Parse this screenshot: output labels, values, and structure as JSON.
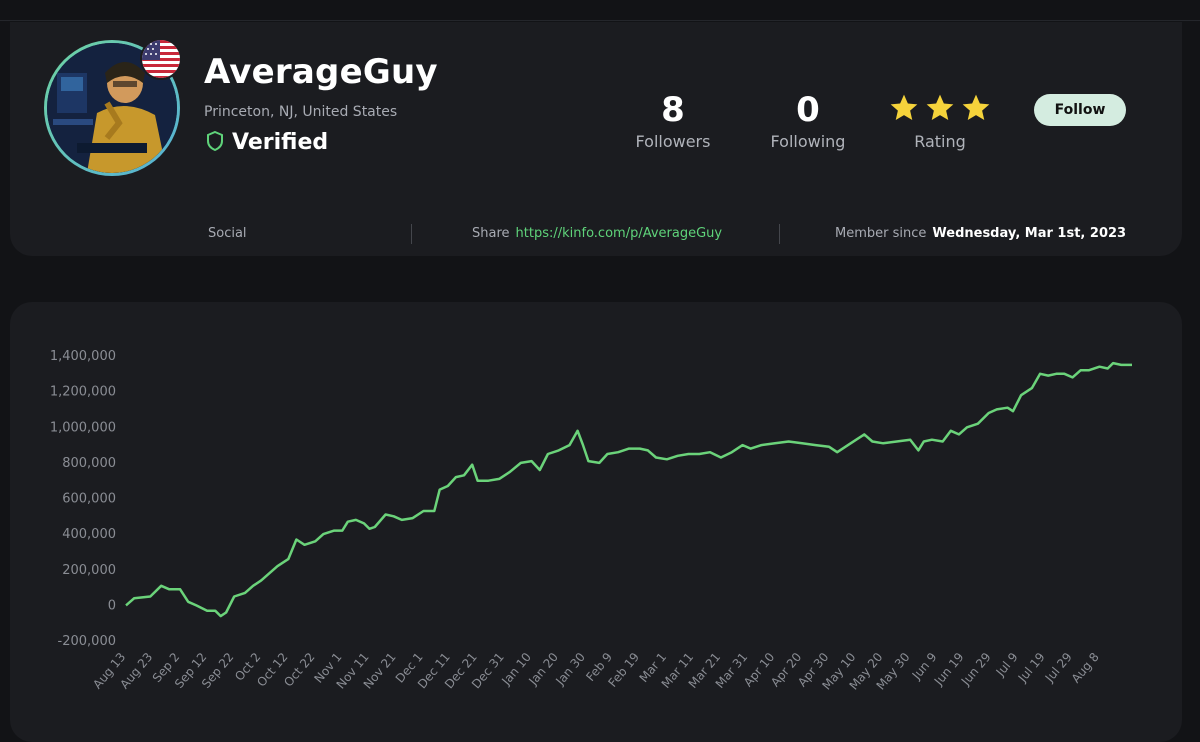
{
  "profile": {
    "name": "AverageGuy",
    "location": "Princeton, NJ, United States",
    "verified_label": "Verified",
    "avatar_icon": "avatar-illustration",
    "flag_icon": "us-flag-icon"
  },
  "stats": {
    "followers_value": "8",
    "followers_label": "Followers",
    "following_value": "0",
    "following_label": "Following",
    "rating_label": "Rating",
    "rating_stars": 3
  },
  "follow_button": "Follow",
  "info": {
    "social_label": "Social",
    "share_label": "Share",
    "share_link": "https://kinfo.com/p/AverageGuy",
    "since_label": "Member since",
    "since_value": "Wednesday, Mar 1st, 2023"
  },
  "colors": {
    "accent": "#5fd37a",
    "star": "#f5d33b",
    "button_bg": "#d4ece0",
    "line": "#6bd37a"
  },
  "chart_data": {
    "type": "line",
    "title": "",
    "xlabel": "",
    "ylabel": "",
    "ylim": [
      -200000,
      1400000
    ],
    "yticks": [
      -200000,
      0,
      200000,
      400000,
      600000,
      800000,
      1000000,
      1200000,
      1400000
    ],
    "ytick_labels": [
      "-200,000",
      "0",
      "200,000",
      "400,000",
      "600,000",
      "800,000",
      "1,000,000",
      "1,200,000",
      "1,400,000"
    ],
    "xtick_labels": [
      "Aug 13",
      "Aug 23",
      "Sep 2",
      "Sep 12",
      "Sep 22",
      "Oct 2",
      "Oct 12",
      "Oct 22",
      "Nov 1",
      "Nov 11",
      "Nov 21",
      "Dec 1",
      "Dec 11",
      "Dec 21",
      "Dec 31",
      "Jan 10",
      "Jan 20",
      "Jan 30",
      "Feb 9",
      "Feb 19",
      "Mar 1",
      "Mar 11",
      "Mar 21",
      "Mar 31",
      "Apr 10",
      "Apr 20",
      "Apr 30",
      "May 10",
      "May 20",
      "May 30",
      "Jun 9",
      "Jun 19",
      "Jun 29",
      "Jul 9",
      "Jul 19",
      "Jul 29",
      "Aug 8"
    ],
    "x_index_max": 37.2,
    "series": [
      {
        "points": [
          [
            0,
            0
          ],
          [
            0.3,
            40000
          ],
          [
            0.9,
            50000
          ],
          [
            1.3,
            110000
          ],
          [
            1.6,
            90000
          ],
          [
            2.0,
            90000
          ],
          [
            2.3,
            20000
          ],
          [
            2.6,
            0
          ],
          [
            3.0,
            -30000
          ],
          [
            3.3,
            -30000
          ],
          [
            3.5,
            -60000
          ],
          [
            3.7,
            -40000
          ],
          [
            4.0,
            50000
          ],
          [
            4.4,
            70000
          ],
          [
            4.7,
            110000
          ],
          [
            5.0,
            140000
          ],
          [
            5.3,
            180000
          ],
          [
            5.6,
            220000
          ],
          [
            6.0,
            260000
          ],
          [
            6.3,
            370000
          ],
          [
            6.6,
            340000
          ],
          [
            7.0,
            360000
          ],
          [
            7.3,
            400000
          ],
          [
            7.7,
            420000
          ],
          [
            8.0,
            420000
          ],
          [
            8.2,
            470000
          ],
          [
            8.5,
            480000
          ],
          [
            8.8,
            460000
          ],
          [
            9.0,
            430000
          ],
          [
            9.2,
            440000
          ],
          [
            9.6,
            510000
          ],
          [
            9.9,
            500000
          ],
          [
            10.2,
            480000
          ],
          [
            10.6,
            490000
          ],
          [
            11.0,
            530000
          ],
          [
            11.4,
            530000
          ],
          [
            11.6,
            650000
          ],
          [
            11.9,
            670000
          ],
          [
            12.2,
            720000
          ],
          [
            12.5,
            730000
          ],
          [
            12.8,
            790000
          ],
          [
            13.0,
            700000
          ],
          [
            13.4,
            700000
          ],
          [
            13.8,
            710000
          ],
          [
            14.2,
            750000
          ],
          [
            14.6,
            800000
          ],
          [
            15.0,
            810000
          ],
          [
            15.3,
            760000
          ],
          [
            15.6,
            850000
          ],
          [
            16.0,
            870000
          ],
          [
            16.4,
            900000
          ],
          [
            16.7,
            980000
          ],
          [
            16.9,
            900000
          ],
          [
            17.1,
            810000
          ],
          [
            17.5,
            800000
          ],
          [
            17.8,
            850000
          ],
          [
            18.2,
            860000
          ],
          [
            18.6,
            880000
          ],
          [
            19.0,
            880000
          ],
          [
            19.3,
            870000
          ],
          [
            19.6,
            830000
          ],
          [
            20.0,
            820000
          ],
          [
            20.4,
            840000
          ],
          [
            20.8,
            850000
          ],
          [
            21.2,
            850000
          ],
          [
            21.6,
            860000
          ],
          [
            22.0,
            830000
          ],
          [
            22.4,
            860000
          ],
          [
            22.8,
            900000
          ],
          [
            23.1,
            880000
          ],
          [
            23.5,
            900000
          ],
          [
            24.0,
            910000
          ],
          [
            24.5,
            920000
          ],
          [
            25.0,
            910000
          ],
          [
            25.5,
            900000
          ],
          [
            26.0,
            890000
          ],
          [
            26.3,
            860000
          ],
          [
            26.7,
            900000
          ],
          [
            27.0,
            930000
          ],
          [
            27.3,
            960000
          ],
          [
            27.6,
            920000
          ],
          [
            28.0,
            910000
          ],
          [
            28.5,
            920000
          ],
          [
            29.0,
            930000
          ],
          [
            29.3,
            870000
          ],
          [
            29.5,
            920000
          ],
          [
            29.8,
            930000
          ],
          [
            30.2,
            920000
          ],
          [
            30.5,
            980000
          ],
          [
            30.8,
            960000
          ],
          [
            31.1,
            1000000
          ],
          [
            31.5,
            1020000
          ],
          [
            31.9,
            1080000
          ],
          [
            32.2,
            1100000
          ],
          [
            32.6,
            1110000
          ],
          [
            32.8,
            1090000
          ],
          [
            33.1,
            1180000
          ],
          [
            33.5,
            1220000
          ],
          [
            33.8,
            1300000
          ],
          [
            34.1,
            1290000
          ],
          [
            34.4,
            1300000
          ],
          [
            34.7,
            1300000
          ],
          [
            35.0,
            1280000
          ],
          [
            35.3,
            1320000
          ],
          [
            35.6,
            1320000
          ],
          [
            36.0,
            1340000
          ],
          [
            36.3,
            1330000
          ],
          [
            36.5,
            1360000
          ],
          [
            36.8,
            1350000
          ],
          [
            37.2,
            1350000
          ]
        ]
      }
    ]
  }
}
